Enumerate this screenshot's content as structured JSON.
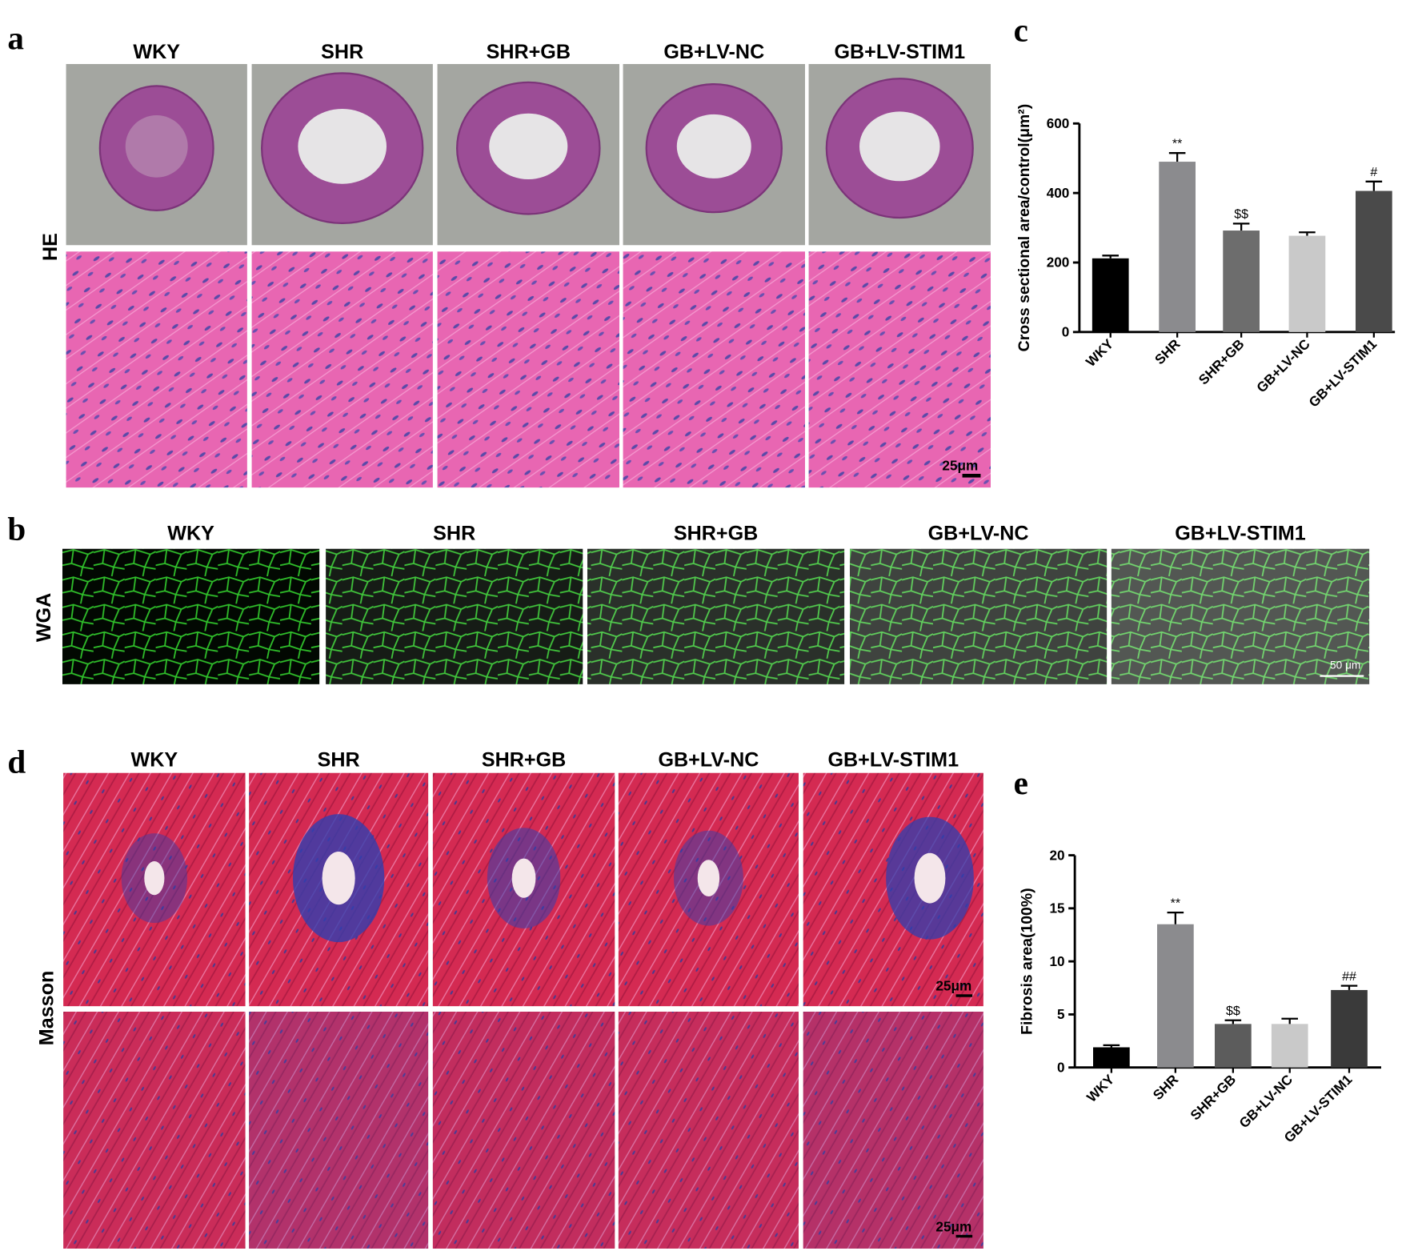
{
  "panels": {
    "a": {
      "label": "a",
      "stain": "HE",
      "groups": [
        "WKY",
        "SHR",
        "SHR+GB",
        "GB+LV-NC",
        "GB+LV-STIM1"
      ],
      "scale_bar": "25μm"
    },
    "b": {
      "label": "b",
      "stain": "WGA",
      "groups": [
        "WKY",
        "SHR",
        "SHR+GB",
        "GB+LV-NC",
        "GB+LV-STIM1"
      ],
      "scale_bar": "50 μm"
    },
    "d": {
      "label": "d",
      "stain": "Masson",
      "groups": [
        "WKY",
        "SHR",
        "SHR+GB",
        "GB+LV-NC",
        "GB+LV-STIM1"
      ],
      "scale_bars": [
        "25μm",
        "25μm"
      ]
    }
  },
  "chart_data": [
    {
      "type": "bar",
      "label": "c",
      "ylabel": "Cross sectional area/control(μm²)",
      "categories": [
        "WKY",
        "SHR",
        "SHR+GB",
        "GB+LV-NC",
        "GB+LV-STIM1"
      ],
      "values": [
        212,
        490,
        292,
        277,
        406
      ],
      "errors": [
        8,
        25,
        20,
        10,
        27
      ],
      "annotations": [
        "",
        "**",
        "$$",
        "",
        "#"
      ],
      "colors": [
        "#000000",
        "#8b8b8e",
        "#6d6d6d",
        "#c9c9c9",
        "#4a4a4a"
      ],
      "ylim": [
        0,
        600
      ],
      "yticks": [
        0,
        200,
        400,
        600
      ]
    },
    {
      "type": "bar",
      "label": "e",
      "ylabel": "Fibrosis area(100%)",
      "categories": [
        "WKY",
        "SHR",
        "SHR+GB",
        "GB+LV-NC",
        "GB+LV-STIM1"
      ],
      "values": [
        1.9,
        13.5,
        4.1,
        4.1,
        7.3
      ],
      "errors": [
        0.2,
        1.1,
        0.35,
        0.5,
        0.4
      ],
      "annotations": [
        "",
        "**",
        "$$",
        "",
        "##"
      ],
      "colors": [
        "#000000",
        "#8b8b8e",
        "#5c5c5c",
        "#c9c9c9",
        "#3a3a3a"
      ],
      "ylim": [
        0,
        20
      ],
      "yticks": [
        0,
        5,
        10,
        15,
        20
      ]
    }
  ]
}
